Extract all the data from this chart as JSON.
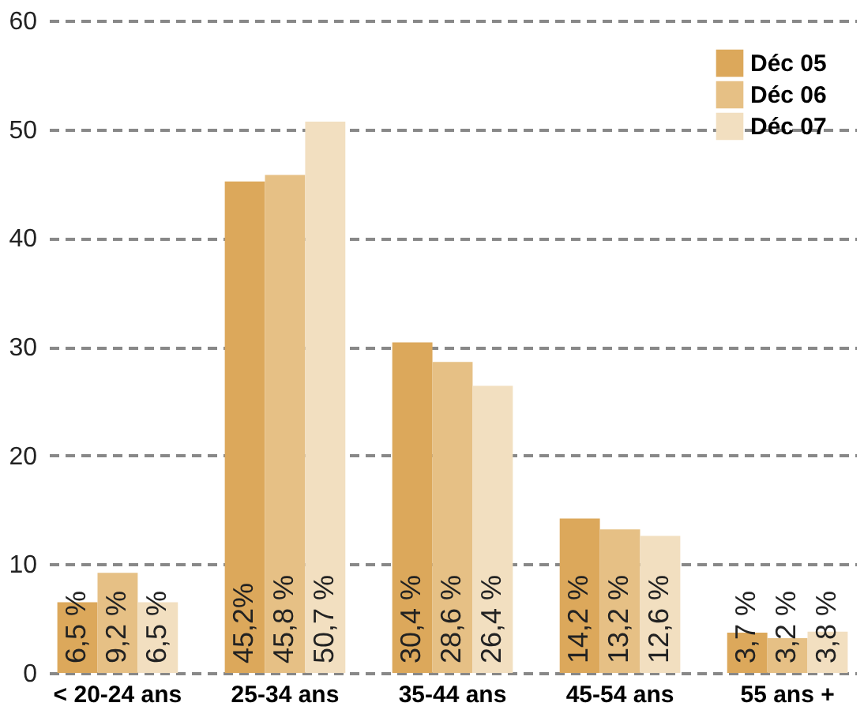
{
  "chart_data": {
    "type": "bar",
    "categories": [
      "< 20-24 ans",
      "25-34 ans",
      "35-44 ans",
      "45-54 ans",
      "55 ans +"
    ],
    "series": [
      {
        "name": "Déc 05",
        "color": "#dca85b",
        "values": [
          6.5,
          45.2,
          30.4,
          14.2,
          3.7
        ],
        "value_labels": [
          "6,5 %",
          "45,2%",
          "30,4 %",
          "14,2 %",
          "3,7 %"
        ]
      },
      {
        "name": "Déc 06",
        "color": "#e6c085",
        "values": [
          9.2,
          45.8,
          28.6,
          13.2,
          3.2
        ],
        "value_labels": [
          "9,2 %",
          "45,8 %",
          "28,6 %",
          "13,2 %",
          "3,2 %"
        ]
      },
      {
        "name": "Déc 07",
        "color": "#f2dfc0",
        "values": [
          6.5,
          50.7,
          26.4,
          12.6,
          3.8
        ],
        "value_labels": [
          "6,5 %",
          "50,7 %",
          "26,4 %",
          "12,6 %",
          "3,8 %"
        ]
      }
    ],
    "ylim": [
      0,
      60
    ],
    "yticks": [
      0,
      10,
      20,
      30,
      40,
      50,
      60
    ],
    "grid": "y",
    "legend": "top right"
  }
}
